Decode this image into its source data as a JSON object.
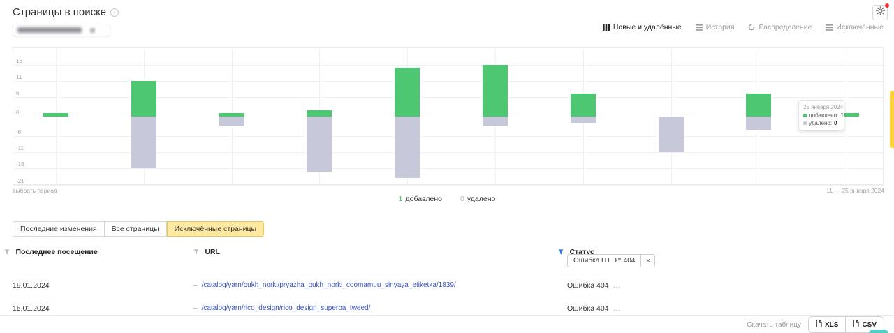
{
  "page": {
    "title": "Страницы в поиске"
  },
  "header": {
    "settings_button": "gear",
    "has_notification_dot": true
  },
  "view_tabs": [
    {
      "label": "Новые и удалённые",
      "icon": "columns-grid-icon",
      "active": true
    },
    {
      "label": "История",
      "icon": "lines-icon",
      "active": false
    },
    {
      "label": "Распределение",
      "icon": "distribution-circle-icon",
      "active": false
    },
    {
      "label": "Исключённые",
      "icon": "lines-icon",
      "active": false
    }
  ],
  "chart_data": {
    "type": "bar",
    "title": "",
    "categories": [
      "",
      "",
      "",
      "",
      "",
      "",
      "",
      "",
      "",
      ""
    ],
    "series": [
      {
        "name": "добавлено",
        "color": "#4ec773",
        "values": [
          1,
          11,
          1,
          2,
          15,
          16,
          7,
          0,
          7,
          1
        ]
      },
      {
        "name": "удалено",
        "color": "#c7c9da",
        "direction": "down",
        "values": [
          0,
          16,
          3,
          17,
          19,
          3,
          2,
          11,
          4,
          0
        ]
      }
    ],
    "yticks": [
      16,
      11,
      6,
      0,
      -6,
      -11,
      -16,
      -21
    ],
    "ylim": [
      -22.5,
      17.5
    ],
    "grid": true,
    "legend_position": "bottom-center",
    "hover": {
      "index": 9,
      "date": "25 января 2024",
      "added": 1,
      "removed": 0
    }
  },
  "chart_footer": {
    "select_period": "выбрать период",
    "date_range": "11 — 25 января 2024"
  },
  "tooltip": {
    "date": "25 января 2024",
    "added_label": "добавлено:",
    "added_value": "1",
    "removed_label": "удалено:",
    "removed_value": "0"
  },
  "legend": {
    "added_value": "1",
    "added_label": "добавлено",
    "removed_value": "0",
    "removed_label": "удалено"
  },
  "filter_tabs": [
    {
      "label": "Последние изменения",
      "active": false
    },
    {
      "label": "Все страницы",
      "active": false
    },
    {
      "label": "Исключённые страницы",
      "active": true
    }
  ],
  "table": {
    "columns": [
      {
        "label": "Последнее посещение",
        "filter_applied": false
      },
      {
        "label": "URL",
        "filter_applied": false
      },
      {
        "label": "Статус",
        "filter_applied": true
      }
    ],
    "status_filter_chip": {
      "label": "Ошибка HTTP: 404",
      "remove": "×"
    },
    "rows": [
      {
        "last_visit": "19.01.2024",
        "url_prefix": "–",
        "url": "/catalog/yarn/pukh_norki/pryazha_pukh_norki_coomamuu_sinyaya_etiketka/1839/",
        "status": "Ошибка 404",
        "more": "…"
      },
      {
        "last_visit": "15.01.2024",
        "url_prefix": "–",
        "url": "/catalog/yarn/rico_design/rico_design_superba_tweed/",
        "status": "Ошибка 404",
        "more": "…"
      }
    ]
  },
  "download": {
    "label": "Скачать таблицу",
    "xls": "XLS",
    "csv": "CSV"
  },
  "colors": {
    "added_green": "#4ec773",
    "removed_gray": "#c7c9da",
    "active_tab_yellow": "#ffe9a0",
    "side_widget_yellow": "#ffd43b",
    "filter_blue": "#1a7be8",
    "link_blue": "#3b53c7"
  }
}
